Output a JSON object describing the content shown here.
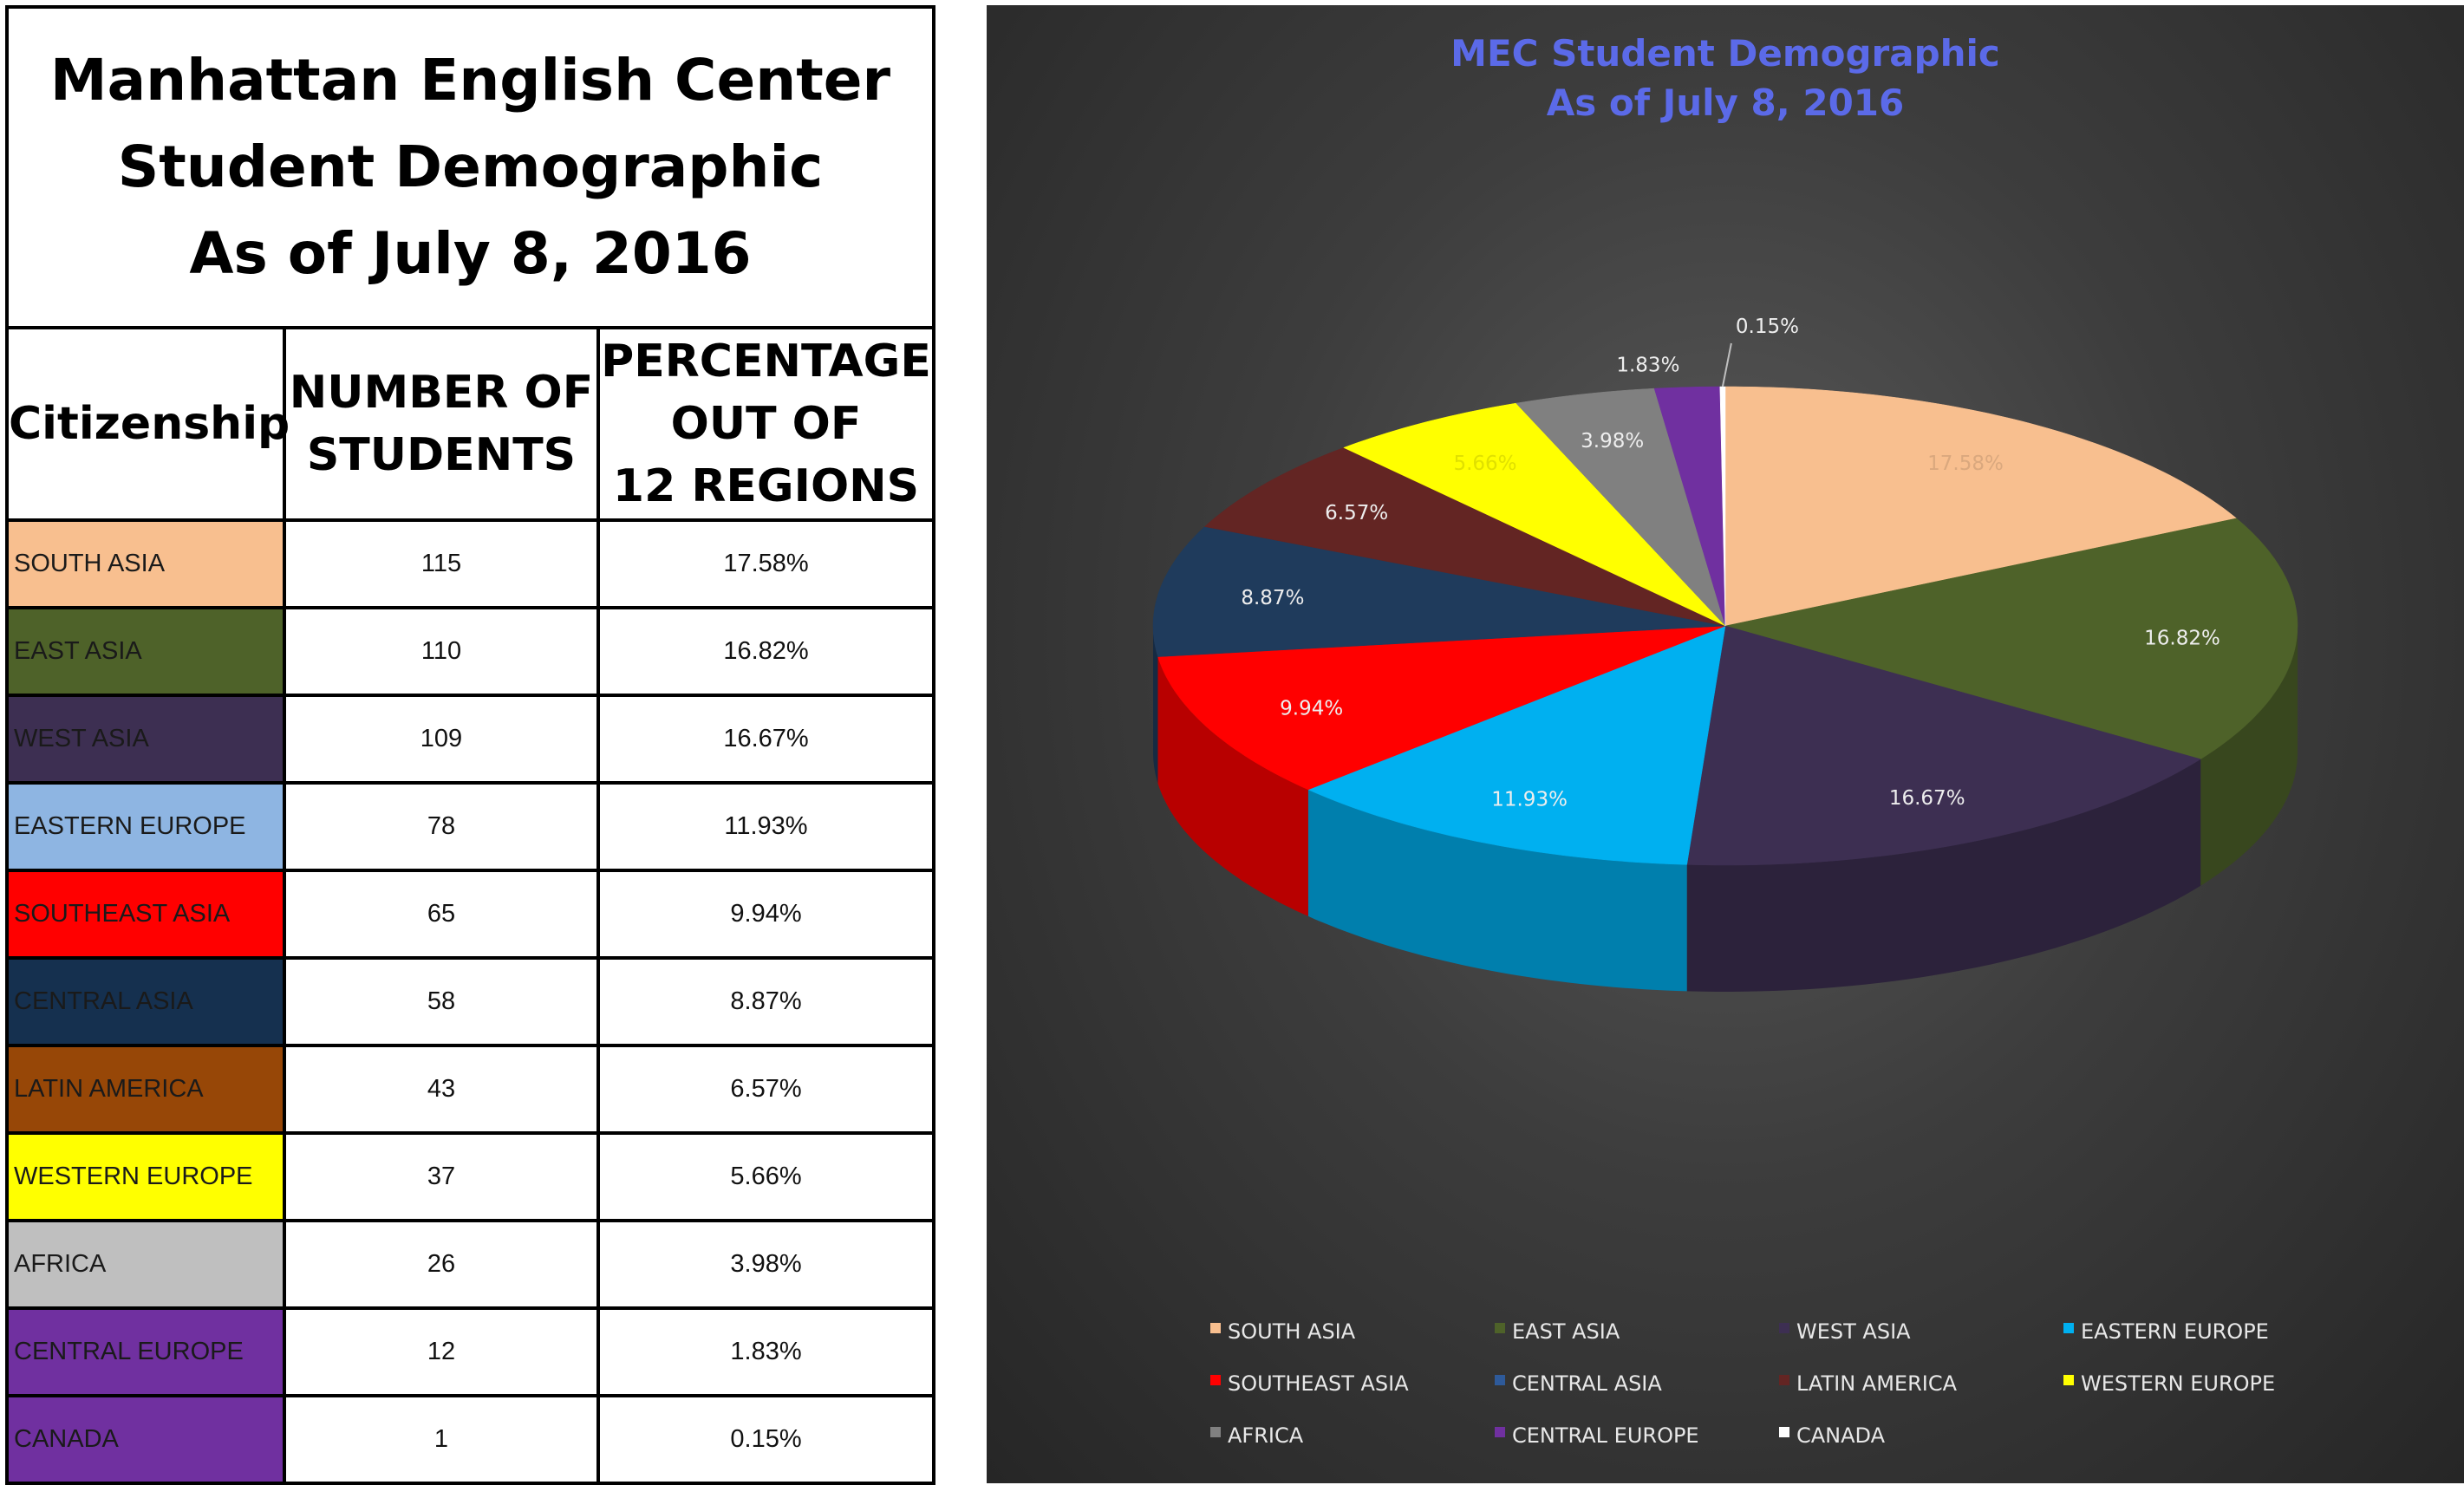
{
  "table": {
    "title_lines": [
      "Manhattan English Center",
      "Student Demographic",
      "As of July 8, 2016"
    ],
    "headers": {
      "citizenship": "Citizenship",
      "students_line1": "NUMBER OF",
      "students_line2": "STUDENTS",
      "pct_line1": "PERCENTAGE",
      "pct_line2": "OUT OF",
      "pct_line3": "12 REGIONS"
    },
    "rows": [
      {
        "region": "SOUTH ASIA",
        "students": "115",
        "percentage": "17.58%",
        "color": "#f8bf8f"
      },
      {
        "region": "EAST ASIA",
        "students": "110",
        "percentage": "16.82%",
        "color": "#4e6229"
      },
      {
        "region": "WEST ASIA",
        "students": "109",
        "percentage": "16.67%",
        "color": "#3d2f52"
      },
      {
        "region": "EASTERN EUROPE",
        "students": "78",
        "percentage": "11.93%",
        "color": "#8eb5e2"
      },
      {
        "region": "SOUTHEAST ASIA",
        "students": "65",
        "percentage": "9.94%",
        "color": "#ff0000"
      },
      {
        "region": "CENTRAL ASIA",
        "students": "58",
        "percentage": "8.87%",
        "color": "#15304f"
      },
      {
        "region": "LATIN AMERICA",
        "students": "43",
        "percentage": "6.57%",
        "color": "#974707"
      },
      {
        "region": "WESTERN EUROPE",
        "students": "37",
        "percentage": "5.66%",
        "color": "#ffff00"
      },
      {
        "region": "AFRICA",
        "students": "26",
        "percentage": "3.98%",
        "color": "#bfbfbf"
      },
      {
        "region": "CENTRAL EUROPE",
        "students": "12",
        "percentage": "1.83%",
        "color": "#7030a0"
      },
      {
        "region": "CANADA",
        "students": "1",
        "percentage": "0.15%",
        "color": "#7030a0"
      }
    ]
  },
  "chart_data": {
    "type": "pie",
    "title_lines": [
      "MEC Student Demographic",
      "As of July 8, 2016"
    ],
    "categories": [
      "SOUTH ASIA",
      "EAST ASIA",
      "WEST ASIA",
      "EASTERN EUROPE",
      "SOUTHEAST ASIA",
      "CENTRAL ASIA",
      "LATIN AMERICA",
      "WESTERN EUROPE",
      "AFRICA",
      "CENTRAL EUROPE",
      "CANADA"
    ],
    "values": [
      17.58,
      16.82,
      16.67,
      11.93,
      9.94,
      8.87,
      6.57,
      5.66,
      3.98,
      1.83,
      0.15
    ],
    "labels": [
      "17.58%",
      "16.82%",
      "16.67%",
      "11.93%",
      "9.94%",
      "8.87%",
      "6.57%",
      "5.66%",
      "3.98%",
      "1.83%",
      "0.15%"
    ],
    "colors": [
      "#f8bf8f",
      "#4e6229",
      "#3d2f52",
      "#00b0f0",
      "#ff0000",
      "#1f3b5c",
      "#632523",
      "#ffff00",
      "#808080",
      "#7030a0",
      "#ffffff"
    ],
    "style": "3d",
    "legend_position": "bottom"
  }
}
